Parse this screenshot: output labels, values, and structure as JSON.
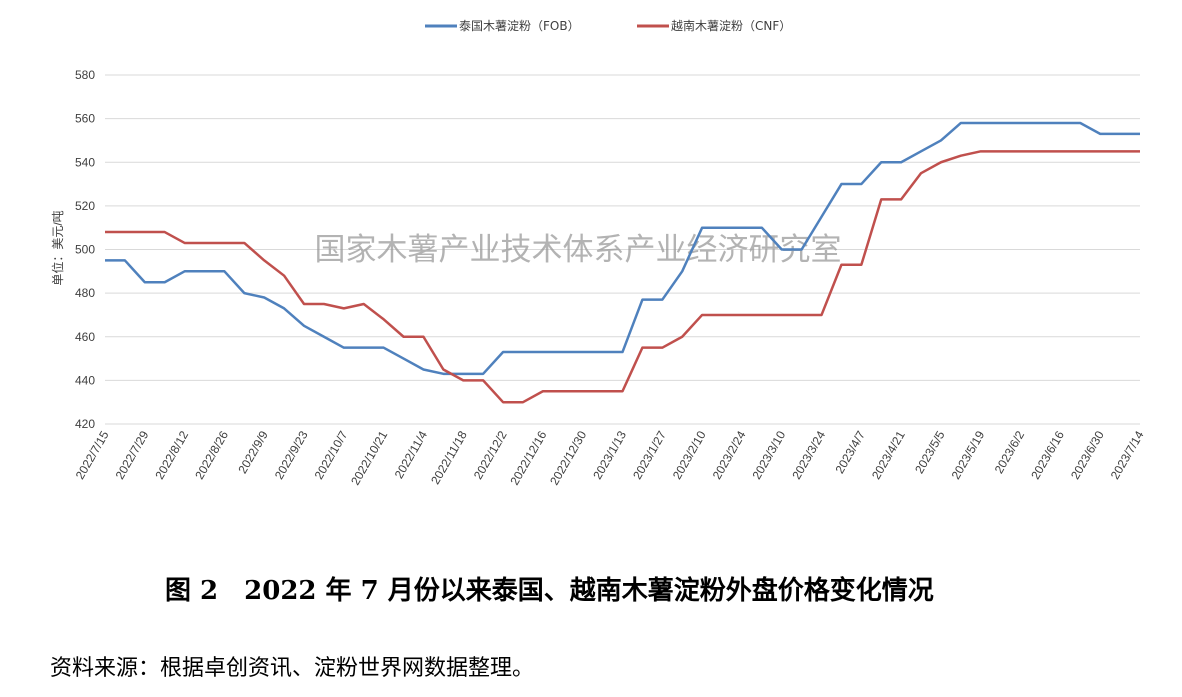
{
  "chart_data": {
    "type": "line",
    "ylabel": "单位：美元/吨",
    "ylim": [
      420,
      580
    ],
    "yticks": [
      420,
      440,
      460,
      480,
      500,
      520,
      540,
      560,
      580
    ],
    "grid": true,
    "legend_position": "top",
    "watermark": "国家木薯产业技术体系产业经济研究室",
    "x": [
      "2022/7/15",
      "2022/7/22",
      "2022/7/29",
      "2022/8/5",
      "2022/8/12",
      "2022/8/19",
      "2022/8/26",
      "2022/9/2",
      "2022/9/9",
      "2022/9/16",
      "2022/9/23",
      "2022/9/30",
      "2022/10/7",
      "2022/10/14",
      "2022/10/21",
      "2022/10/28",
      "2022/11/4",
      "2022/11/11",
      "2022/11/18",
      "2022/11/25",
      "2022/12/2",
      "2022/12/9",
      "2022/12/16",
      "2022/12/23",
      "2022/12/30",
      "2023/1/6",
      "2023/1/13",
      "2023/1/20",
      "2023/1/27",
      "2023/2/3",
      "2023/2/10",
      "2023/2/17",
      "2023/2/24",
      "2023/3/3",
      "2023/3/10",
      "2023/3/17",
      "2023/3/24",
      "2023/3/31",
      "2023/4/7",
      "2023/4/14",
      "2023/4/21",
      "2023/4/28",
      "2023/5/5",
      "2023/5/12",
      "2023/5/19",
      "2023/5/26",
      "2023/6/2",
      "2023/6/9",
      "2023/6/16",
      "2023/6/23",
      "2023/6/30",
      "2023/7/7",
      "2023/7/14"
    ],
    "xtick_labels": [
      "2022/7/15",
      "2022/7/29",
      "2022/8/12",
      "2022/8/26",
      "2022/9/9",
      "2022/9/23",
      "2022/10/7",
      "2022/10/21",
      "2022/11/4",
      "2022/11/18",
      "2022/12/2",
      "2022/12/16",
      "2022/12/30",
      "2023/1/13",
      "2023/1/27",
      "2023/2/10",
      "2023/2/24",
      "2023/3/10",
      "2023/3/24",
      "2023/4/7",
      "2023/4/21",
      "2023/5/5",
      "2023/5/19",
      "2023/6/2",
      "2023/6/16",
      "2023/6/30",
      "2023/7/14"
    ],
    "series": [
      {
        "name": "泰国木薯淀粉（FOB）",
        "color": "#4F81BD",
        "values": [
          495,
          495,
          485,
          485,
          490,
          490,
          490,
          480,
          478,
          473,
          465,
          460,
          455,
          455,
          455,
          450,
          445,
          443,
          443,
          443,
          453,
          453,
          453,
          453,
          453,
          453,
          453,
          477,
          477,
          490,
          510,
          510,
          510,
          510,
          500,
          500,
          515,
          530,
          530,
          540,
          540,
          545,
          550,
          558,
          558,
          558,
          558,
          558,
          558,
          558,
          553,
          553,
          553
        ]
      },
      {
        "name": "越南木薯淀粉（CNF）",
        "color": "#C0504D",
        "values": [
          508,
          508,
          508,
          508,
          503,
          503,
          503,
          503,
          495,
          488,
          475,
          475,
          473,
          475,
          468,
          460,
          460,
          445,
          440,
          440,
          430,
          430,
          435,
          435,
          435,
          435,
          435,
          455,
          455,
          460,
          470,
          470,
          470,
          470,
          470,
          470,
          470,
          493,
          493,
          523,
          523,
          535,
          540,
          543,
          545,
          545,
          545,
          545,
          545,
          545,
          545,
          545,
          545
        ]
      }
    ]
  },
  "caption": "图 2　2022 年 7 月份以来泰国、越南木薯淀粉外盘价格变化情况",
  "source": "资料来源：根据卓创资讯、淀粉世界网数据整理。"
}
